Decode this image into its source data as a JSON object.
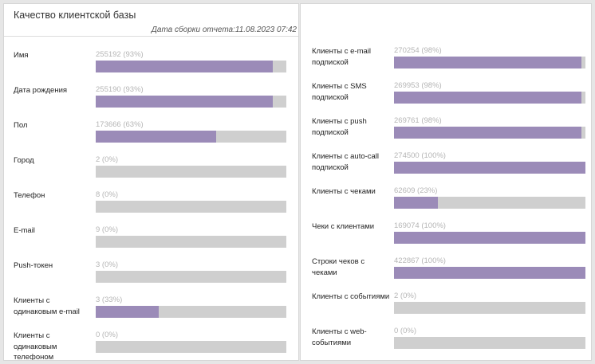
{
  "header": {
    "title": "Качество клиентской базы",
    "report_date": "Дата сборки отчета:11.08.2023 07:42"
  },
  "colors": {
    "fill": "#9b8bb8",
    "track": "#cfcfcf"
  },
  "left_metrics": [
    {
      "label": "Имя",
      "value": "255192 (93%)",
      "fraction": 0.93
    },
    {
      "label": "Дата рождения",
      "value": "255190 (93%)",
      "fraction": 0.93
    },
    {
      "label": "Пол",
      "value": "173666 (63%)",
      "fraction": 0.63
    },
    {
      "label": "Город",
      "value": "2 (0%)",
      "fraction": 0
    },
    {
      "label": "Телефон",
      "value": "8 (0%)",
      "fraction": 0
    },
    {
      "label": "E-mail",
      "value": "9 (0%)",
      "fraction": 0
    },
    {
      "label": "Push-токен",
      "value": "3 (0%)",
      "fraction": 0
    },
    {
      "label": "Клиенты с одинаковым e-mail",
      "value": "3 (33%)",
      "fraction": 0.33
    },
    {
      "label": "Клиенты с одинаковым телефоном",
      "value": "0 (0%)",
      "fraction": 0
    }
  ],
  "right_metrics": [
    {
      "label": "Клиенты с e-mail подпиской",
      "value": "270254 (98%)",
      "fraction": 0.98
    },
    {
      "label": "Клиенты с SMS подпиской",
      "value": "269953 (98%)",
      "fraction": 0.98
    },
    {
      "label": "Клиенты с push подпиской",
      "value": "269761 (98%)",
      "fraction": 0.98
    },
    {
      "label": "Клиенты с auto-call подпиской",
      "value": "274500 (100%)",
      "fraction": 1.0
    },
    {
      "label": "Клиенты с чеками",
      "value": "62609 (23%)",
      "fraction": 0.23
    },
    {
      "label": "Чеки с клиентами",
      "value": "169074 (100%)",
      "fraction": 1.0
    },
    {
      "label": "Строки чеков с чеками",
      "value": "422867 (100%)",
      "fraction": 1.0
    },
    {
      "label": "Клиенты с событиями",
      "value": "2 (0%)",
      "fraction": 0
    },
    {
      "label": "Клиенты с web-событиями",
      "value": "0 (0%)",
      "fraction": 0
    }
  ]
}
